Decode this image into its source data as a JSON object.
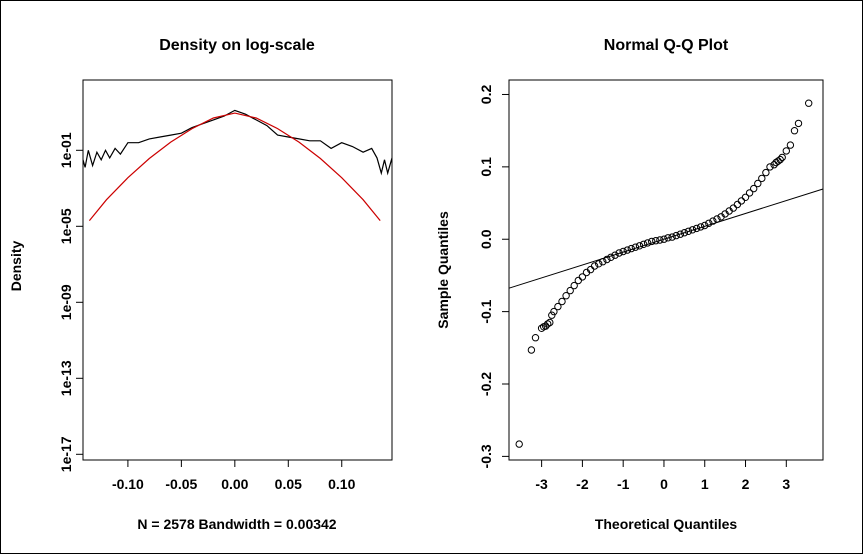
{
  "chart_data": [
    {
      "type": "line",
      "title": "Density on log-scale",
      "xlabel": "N = 2578   Bandwidth = 0.00342",
      "ylabel": "Density",
      "log_y": true,
      "xlim": [
        -0.142,
        0.147
      ],
      "ylim_log10": [
        -17.3,
        2.7
      ],
      "x_ticks": [
        -0.1,
        -0.05,
        0.0,
        0.05,
        0.1
      ],
      "x_tick_labels": [
        "-0.10",
        "-0.05",
        "0.00",
        "0.05",
        "0.10"
      ],
      "y_ticks_log10": [
        -1,
        -5,
        -9,
        -13,
        -17
      ],
      "y_tick_labels": [
        "1e-01",
        "1e-05",
        "1e-09",
        "1e-13",
        "1e-17"
      ],
      "grid": false,
      "series": [
        {
          "color": "#000000",
          "x": [
            -0.142,
            -0.14,
            -0.137,
            -0.133,
            -0.129,
            -0.125,
            -0.121,
            -0.117,
            -0.112,
            -0.107,
            -0.1,
            -0.09,
            -0.08,
            -0.07,
            -0.06,
            -0.05,
            -0.04,
            -0.03,
            -0.02,
            -0.01,
            0.0,
            0.01,
            0.02,
            0.03,
            0.04,
            0.05,
            0.06,
            0.07,
            0.08,
            0.09,
            0.1,
            0.11,
            0.12,
            0.128,
            0.133,
            0.137,
            0.14,
            0.143,
            0.147
          ],
          "y": [
            0.0316,
            0.0126,
            0.1,
            0.0158,
            0.0794,
            0.0316,
            0.1,
            0.0398,
            0.1259,
            0.0631,
            0.2512,
            0.2512,
            0.3981,
            0.5012,
            0.631,
            0.7943,
            1.5849,
            2.5119,
            3.9811,
            6.3096,
            12.5893,
            7.9433,
            3.9811,
            1.9953,
            0.631,
            0.5012,
            0.3981,
            0.3162,
            0.3162,
            0.1259,
            0.2512,
            0.1585,
            0.0794,
            0.1259,
            0.0398,
            0.0063,
            0.0316,
            0.0063,
            0.0398
          ]
        },
        {
          "color": "#cc0000",
          "x": [
            -0.136,
            -0.12,
            -0.1,
            -0.08,
            -0.06,
            -0.04,
            -0.02,
            0.0,
            0.02,
            0.04,
            0.06,
            0.08,
            0.1,
            0.12,
            0.136
          ],
          "y": [
            2e-05,
            0.00025,
            0.0036,
            0.0371,
            0.269,
            1.3822,
            5.0212,
            9.1012,
            5.0212,
            1.3822,
            0.269,
            0.0371,
            0.0036,
            0.00025,
            2e-05
          ]
        }
      ]
    },
    {
      "type": "scatter",
      "title": "Normal Q-Q Plot",
      "xlabel": "Theoretical Quantiles",
      "ylabel": "Sample Quantiles",
      "xlim": [
        -3.8,
        3.9
      ],
      "ylim": [
        -0.305,
        0.22
      ],
      "x_ticks": [
        -3,
        -2,
        -1,
        0,
        1,
        2,
        3
      ],
      "x_tick_labels": [
        "-3",
        "-2",
        "-1",
        "0",
        "1",
        "2",
        "3"
      ],
      "y_ticks": [
        0.2,
        0.1,
        0.0,
        -0.1,
        -0.2,
        -0.3
      ],
      "y_tick_labels": [
        "0.2",
        "0.1",
        "0.0",
        "-0.1",
        "-0.2",
        "-0.3"
      ],
      "grid": false,
      "reference_line": {
        "intercept": 0.0,
        "slope": 0.0178
      },
      "points": {
        "x": [
          -3.55,
          -3.25,
          -3.15,
          -3.0,
          -2.95,
          -2.9,
          -2.85,
          -2.8,
          -2.75,
          -2.7,
          -2.6,
          -2.5,
          -2.4,
          -2.3,
          -2.2,
          -2.1,
          -2.0,
          -1.9,
          -1.8,
          -1.7,
          -1.6,
          -1.5,
          -1.4,
          -1.3,
          -1.2,
          -1.1,
          -1.0,
          -0.9,
          -0.8,
          -0.7,
          -0.6,
          -0.5,
          -0.4,
          -0.3,
          -0.2,
          -0.1,
          0.0,
          0.1,
          0.2,
          0.3,
          0.4,
          0.5,
          0.6,
          0.7,
          0.8,
          0.9,
          1.0,
          1.1,
          1.2,
          1.3,
          1.4,
          1.5,
          1.6,
          1.7,
          1.8,
          1.9,
          2.0,
          2.1,
          2.2,
          2.3,
          2.4,
          2.5,
          2.6,
          2.7,
          2.75,
          2.8,
          2.85,
          2.9,
          3.0,
          3.1,
          3.2,
          3.3,
          3.55
        ],
        "y": [
          -0.283,
          -0.153,
          -0.136,
          -0.123,
          -0.121,
          -0.12,
          -0.117,
          -0.115,
          -0.105,
          -0.1,
          -0.093,
          -0.086,
          -0.078,
          -0.071,
          -0.064,
          -0.057,
          -0.052,
          -0.046,
          -0.042,
          -0.037,
          -0.034,
          -0.031,
          -0.028,
          -0.025,
          -0.022,
          -0.019,
          -0.017,
          -0.015,
          -0.013,
          -0.011,
          -0.009,
          -0.007,
          -0.005,
          -0.003,
          -0.002,
          -0.001,
          0.0,
          0.002,
          0.003,
          0.005,
          0.007,
          0.009,
          0.011,
          0.013,
          0.015,
          0.017,
          0.019,
          0.022,
          0.025,
          0.028,
          0.031,
          0.035,
          0.039,
          0.043,
          0.048,
          0.053,
          0.058,
          0.064,
          0.07,
          0.077,
          0.084,
          0.092,
          0.1,
          0.103,
          0.106,
          0.108,
          0.11,
          0.113,
          0.122,
          0.13,
          0.15,
          0.16,
          0.188
        ]
      }
    }
  ]
}
